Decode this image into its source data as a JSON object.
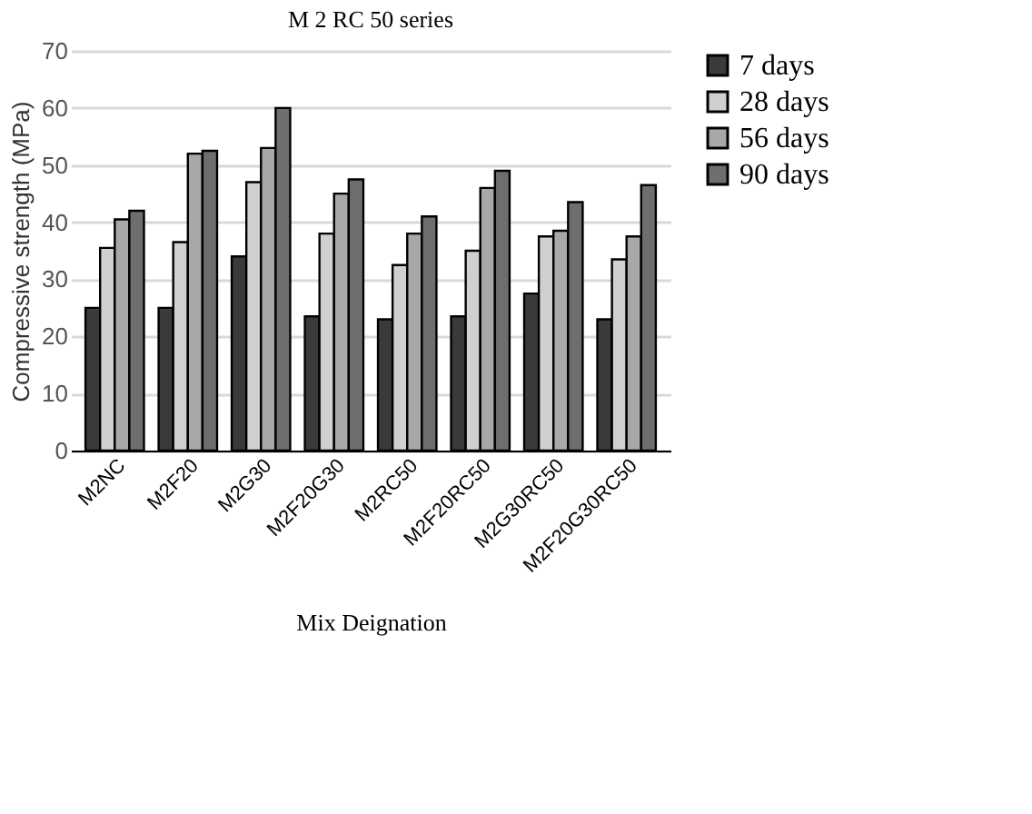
{
  "chart_data": {
    "type": "bar",
    "title": "M 2 RC 50 series",
    "xlabel": "Mix Deignation",
    "ylabel": "Compressive strength (MPa)",
    "categories": [
      "M2NC",
      "M2F20",
      "M2G30",
      "M2F20G30",
      "M2RC50",
      "M2F20RC50",
      "M2G30RC50",
      "M2F20G30RC50"
    ],
    "series": [
      {
        "name": "7 days",
        "color": "#3a3a3a",
        "values": [
          25,
          25,
          34,
          23.5,
          23,
          23.5,
          27.5,
          23
        ]
      },
      {
        "name": "28 days",
        "color": "#d0d0d0",
        "values": [
          35.5,
          36.5,
          47,
          38,
          32.5,
          35,
          37.5,
          33.5
        ]
      },
      {
        "name": "56 days",
        "color": "#a8a8a8",
        "values": [
          40.5,
          52,
          53,
          45,
          38,
          46,
          38.5,
          37.5
        ]
      },
      {
        "name": "90 days",
        "color": "#6e6e6e",
        "values": [
          42,
          52.5,
          60,
          47.5,
          41,
          49,
          43.5,
          46.5
        ]
      }
    ],
    "ylim": [
      0,
      70
    ],
    "yticks": [
      0,
      10,
      20,
      30,
      40,
      50,
      60,
      70
    ],
    "grid": "y",
    "legend": "right"
  }
}
